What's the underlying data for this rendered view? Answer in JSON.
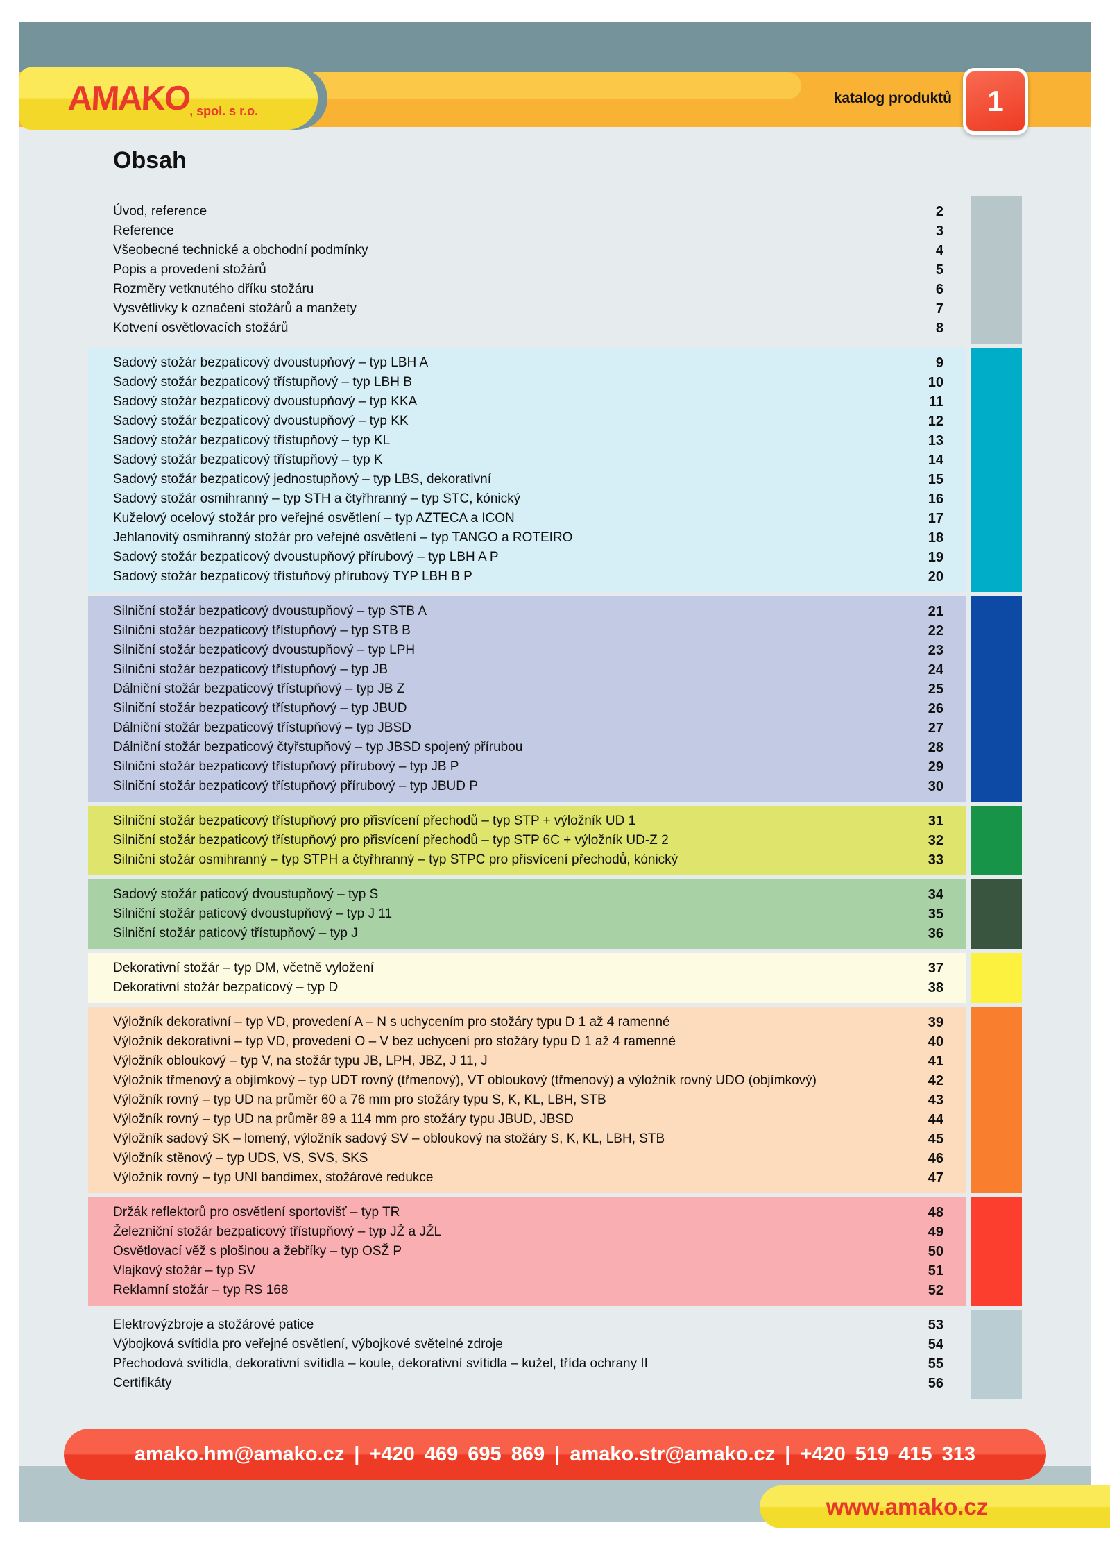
{
  "header": {
    "logo_text": "AMAKO",
    "logo_suffix": ", spol. s r.o.",
    "catalog_label": "katalog produktů",
    "page_number": "1"
  },
  "title": "Obsah",
  "toc_sections": [
    {
      "band_color": null,
      "sidebar_color": "#b6c6c9",
      "items": [
        {
          "label": "Úvod, reference",
          "page": "2"
        },
        {
          "label": "Reference",
          "page": "3"
        },
        {
          "label": "Všeobecné technické a obchodní podmínky",
          "page": "4"
        },
        {
          "label": "Popis a provedení stožárů",
          "page": "5"
        },
        {
          "label": "Rozměry vetknutého dříku stožáru",
          "page": "6"
        },
        {
          "label": "Vysvětlivky k označení stožárů a manžety",
          "page": "7"
        },
        {
          "label": "Kotvení osvětlovacích stožárů",
          "page": "8"
        }
      ]
    },
    {
      "band_color": "#d6eef6",
      "sidebar_color": "#00adc9",
      "items": [
        {
          "label": "Sadový stožár bezpaticový dvoustupňový – typ LBH A",
          "page": "9"
        },
        {
          "label": "Sadový stožár bezpaticový třístupňový – typ LBH B",
          "page": "10"
        },
        {
          "label": "Sadový stožár bezpaticový dvoustupňový – typ KKA",
          "page": "11"
        },
        {
          "label": "Sadový stožár bezpaticový dvoustupňový – typ KK",
          "page": "12"
        },
        {
          "label": "Sadový stožár bezpaticový třístupňový – typ KL",
          "page": "13"
        },
        {
          "label": "Sadový stožár bezpaticový třístupňový – typ K",
          "page": "14"
        },
        {
          "label": "Sadový stožár bezpaticový jednostupňový – typ LBS, dekorativní",
          "page": "15"
        },
        {
          "label": "Sadový stožár osmihranný – typ STH a čtyřhranný – typ STC, kónický",
          "page": "16"
        },
        {
          "label": "Kuželový ocelový stožár pro veřejné osvětlení – typ AZTECA a ICON",
          "page": "17"
        },
        {
          "label": "Jehlanovitý osmihranný stožár pro veřejné osvětlení – typ TANGO a ROTEIRO",
          "page": "18"
        },
        {
          "label": "Sadový stožár bezpaticový dvoustupňový přírubový – typ LBH A P",
          "page": "19"
        },
        {
          "label": "Sadový stožár bezpaticový třístuňový přírubový  TYP LBH B P",
          "page": "20"
        }
      ]
    },
    {
      "band_color": "#c3cae3",
      "sidebar_color": "#0c4aa6",
      "items": [
        {
          "label": "Silniční stožár bezpaticový dvoustupňový – typ STB A",
          "page": "21"
        },
        {
          "label": "Silniční stožár bezpaticový třístupňový – typ STB B",
          "page": "22"
        },
        {
          "label": "Silniční stožár bezpaticový dvoustupňový – typ LPH",
          "page": "23"
        },
        {
          "label": "Silniční stožár bezpaticový třístupňový – typ JB",
          "page": "24"
        },
        {
          "label": "Dálniční stožár bezpaticový třístupňový – typ JB Z",
          "page": "25"
        },
        {
          "label": "Silniční stožár bezpaticový třístupňový – typ JBUD",
          "page": "26"
        },
        {
          "label": "Dálniční stožár bezpaticový třístupňový – typ JBSD",
          "page": "27"
        },
        {
          "label": "Dálniční stožár bezpaticový čtyřstupňový – typ JBSD spojený přírubou",
          "page": "28"
        },
        {
          "label": "Silniční stožár bezpaticový třístupňový přírubový – typ JB P",
          "page": "29"
        },
        {
          "label": "Silniční stožár bezpaticový třístupňový přírubový – typ JBUD P",
          "page": "30"
        }
      ]
    },
    {
      "band_color": "#dfe56c",
      "sidebar_color": "#189448",
      "items": [
        {
          "label": "Silniční stožár bezpaticový třístupňový pro přisvícení přechodů – typ STP + výložník UD 1",
          "page": "31"
        },
        {
          "label": "Silniční stožár bezpaticový třístupňový pro přisvícení přechodů – typ STP 6C + výložník UD-Z 2",
          "page": "32"
        },
        {
          "label": "Silniční stožár osmihranný – typ STPH a čtyřhranný – typ STPC pro přisvícení přechodů, kónický",
          "page": "33"
        }
      ]
    },
    {
      "band_color": "#a9d1a6",
      "sidebar_color": "#39553f",
      "items": [
        {
          "label": "Sadový stožár paticový dvoustupňový – typ S",
          "page": "34"
        },
        {
          "label": "Silniční stožár paticový dvoustupňový – typ J 11",
          "page": "35"
        },
        {
          "label": "Silniční stožár paticový třístupňový – typ J",
          "page": "36"
        }
      ]
    },
    {
      "band_color": "#fdfce3",
      "sidebar_color": "#fdf140",
      "items": [
        {
          "label": "Dekorativní stožár – typ DM, včetně vyložení",
          "page": "37"
        },
        {
          "label": "Dekorativní stožár bezpaticový – typ D",
          "page": "38"
        }
      ]
    },
    {
      "band_color": "#fcdcbd",
      "sidebar_color": "#f97e2e",
      "items": [
        {
          "label": "Výložník dekorativní – typ VD, provedení A – N s uchycením pro stožáry typu D 1 až 4 ramenné",
          "page": "39"
        },
        {
          "label": "Výložník dekorativní – typ VD, provedení O – V bez uchycení pro stožáry typu D 1 až 4 ramenné",
          "page": "40"
        },
        {
          "label": "Výložník obloukový – typ V, na stožár typu JB, LPH, JBZ, J 11, J",
          "page": "41"
        },
        {
          "label": "Výložník třmenový a objímkový – typ UDT rovný (třmenový),  VT obloukový (třmenový) a výložník rovný UDO (objímkový)",
          "page": "42"
        },
        {
          "label": "Výložník rovný – typ UD na průměr 60 a 76 mm pro stožáry typu S, K, KL, LBH, STB",
          "page": "43"
        },
        {
          "label": "Výložník rovný – typ UD na průměr 89 a 114 mm pro stožáry typu JBUD, JBSD",
          "page": "44"
        },
        {
          "label": "Výložník sadový SK – lomený, výložník sadový SV – obloukový na stožáry S, K, KL, LBH, STB",
          "page": "45"
        },
        {
          "label": "Výložník stěnový – typ UDS, VS, SVS, SKS",
          "page": "46"
        },
        {
          "label": "Výložník rovný – typ UNI bandimex, stožárové redukce",
          "page": "47"
        }
      ]
    },
    {
      "band_color": "#f9aeb1",
      "sidebar_color": "#fb3e2d",
      "items": [
        {
          "label": "Držák reflektorů pro osvětlení sportovišť – typ TR",
          "page": "48"
        },
        {
          "label": "Železniční stožár bezpaticový třístupňový – typ JŽ a JŽL",
          "page": "49"
        },
        {
          "label": "Osvětlovací věž s plošinou a žebříky – typ OSŽ P",
          "page": "50"
        },
        {
          "label": "Vlajkový stožár – typ SV",
          "page": "51"
        },
        {
          "label": "Reklamní stožár – typ RS 168",
          "page": "52"
        }
      ]
    },
    {
      "band_color": null,
      "sidebar_color": "#bacdd2",
      "items": [
        {
          "label": "Elektrovýzbroje a stožárové patice",
          "page": "53"
        },
        {
          "label": "Výbojková svítidla pro veřejné osvětlení, výbojkové světelné zdroje",
          "page": "54"
        },
        {
          "label": "Přechodová svítidla, dekorativní svítidla – koule, dekorativní svítidla – kužel, třída ochrany II",
          "page": "55"
        },
        {
          "label": "Certifikáty",
          "page": "56"
        }
      ]
    }
  ],
  "footer": {
    "contact_line": "amako.hm@amako.cz | +420 469 695 869 | amako.str@amako.cz | +420 519 415 313",
    "website": "www.amako.cz"
  },
  "colors": {
    "accent_orange": "#f9b233",
    "accent_yellow": "#f3d829",
    "brand_red": "#e8392c",
    "slate_band_top": "#74939b",
    "slate_band_bottom": "#b2c5c9",
    "page_background": "#e6eced"
  }
}
